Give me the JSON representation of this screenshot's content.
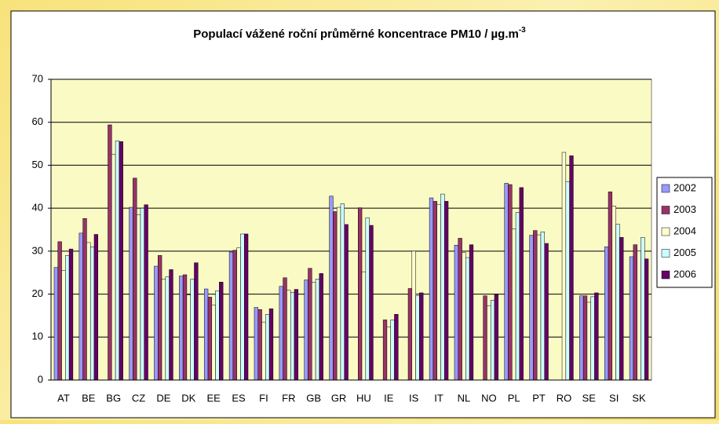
{
  "chart_data": {
    "type": "bar",
    "title": "Populací vážené roční průměrné koncentrace PM10 / µg.m",
    "title_superscript": "-3",
    "categories": [
      "AT",
      "BE",
      "BG",
      "CZ",
      "DE",
      "DK",
      "EE",
      "ES",
      "FI",
      "FR",
      "GB",
      "GR",
      "HU",
      "IE",
      "IS",
      "IT",
      "NL",
      "NO",
      "PL",
      "PT",
      "RO",
      "SE",
      "SI",
      "SK"
    ],
    "series": [
      {
        "name": "2002",
        "color": "#9999ff",
        "values": [
          26.2,
          34.2,
          null,
          40.2,
          26.5,
          24.2,
          21.2,
          29.8,
          16.9,
          21.8,
          23.3,
          42.8,
          null,
          null,
          null,
          42.4,
          31.4,
          null,
          45.8,
          33.7,
          null,
          19.6,
          31.0,
          28.7
        ]
      },
      {
        "name": "2003",
        "color": "#993366",
        "values": [
          32.2,
          37.6,
          59.4,
          47.0,
          29.0,
          24.5,
          19.3,
          30.2,
          16.4,
          23.8,
          26.0,
          39.2,
          40.1,
          14.0,
          21.3,
          41.6,
          33.0,
          19.6,
          45.5,
          34.8,
          null,
          19.6,
          43.8,
          31.5
        ]
      },
      {
        "name": "2004",
        "color": "#ffffcc",
        "values": [
          25.5,
          32.0,
          52.5,
          38.5,
          23.5,
          19.8,
          17.5,
          30.8,
          13.5,
          20.9,
          22.8,
          40.2,
          25.2,
          12.4,
          30.0,
          40.9,
          29.7,
          17.3,
          35.2,
          33.8,
          53.0,
          18.1,
          40.5,
          30.0
        ]
      },
      {
        "name": "2005",
        "color": "#ccffff",
        "values": [
          29.0,
          31.0,
          55.7,
          40.0,
          24.0,
          23.5,
          20.8,
          34.0,
          15.3,
          20.4,
          23.5,
          41.0,
          37.8,
          14.0,
          19.6,
          43.3,
          28.5,
          18.6,
          39.0,
          34.5,
          46.2,
          19.4,
          36.3,
          33.2
        ]
      },
      {
        "name": "2006",
        "color": "#660066",
        "values": [
          30.5,
          33.9,
          55.5,
          40.8,
          25.7,
          27.3,
          22.8,
          34.0,
          16.6,
          21.1,
          24.8,
          36.2,
          36.0,
          15.3,
          20.3,
          41.6,
          31.5,
          19.9,
          44.8,
          31.8,
          52.2,
          20.3,
          33.2,
          28.2
        ]
      }
    ],
    "ylim": [
      0,
      70
    ],
    "yticks": [
      0,
      10,
      20,
      30,
      40,
      50,
      60,
      70
    ],
    "grid": true,
    "legend": "right"
  }
}
